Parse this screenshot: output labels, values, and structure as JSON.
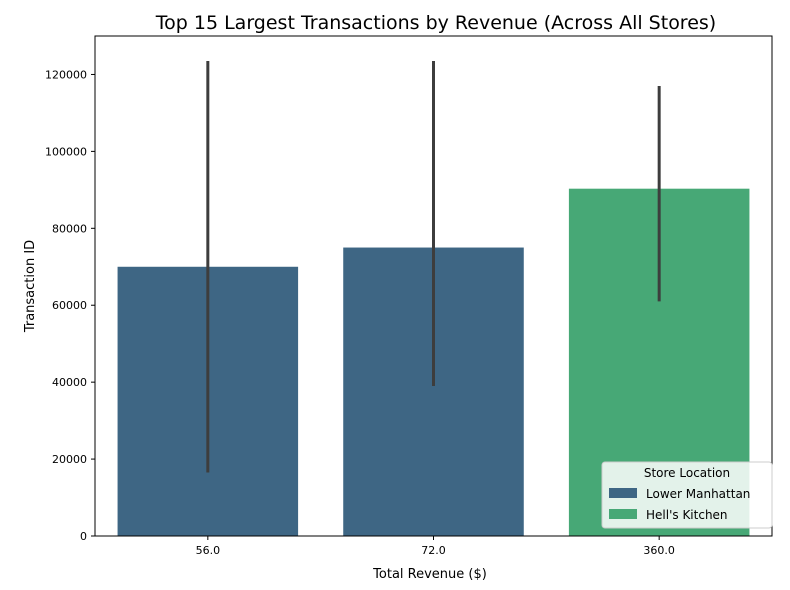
{
  "chart_data": {
    "type": "bar",
    "title": "Top 15 Largest Transactions by Revenue (Across All Stores)",
    "xlabel": "Total Revenue ($)",
    "ylabel": "Transaction ID",
    "categories": [
      "56.0",
      "72.0",
      "360.0"
    ],
    "ylim": [
      0,
      130000
    ],
    "yticks": [
      0,
      20000,
      40000,
      60000,
      80000,
      100000,
      120000
    ],
    "grid": false,
    "legend": {
      "title": "Store Location",
      "placement": "lower-right",
      "entries": [
        {
          "name": "Lower Manhattan",
          "color": "#3e6684"
        },
        {
          "name": "Hell's Kitchen",
          "color": "#47a876"
        }
      ]
    },
    "bars": [
      {
        "category": "56.0",
        "value": 70000,
        "error_low": 16500,
        "error_high": 123500,
        "store": "Lower Manhattan"
      },
      {
        "category": "72.0",
        "value": 75000,
        "error_low": 39000,
        "error_high": 123500,
        "store": "Lower Manhattan"
      },
      {
        "category": "360.0",
        "value": 90300,
        "error_low": 61000,
        "error_high": 117000,
        "store": "Hell's Kitchen"
      }
    ],
    "error_bar_color": "#3d3d3d"
  }
}
